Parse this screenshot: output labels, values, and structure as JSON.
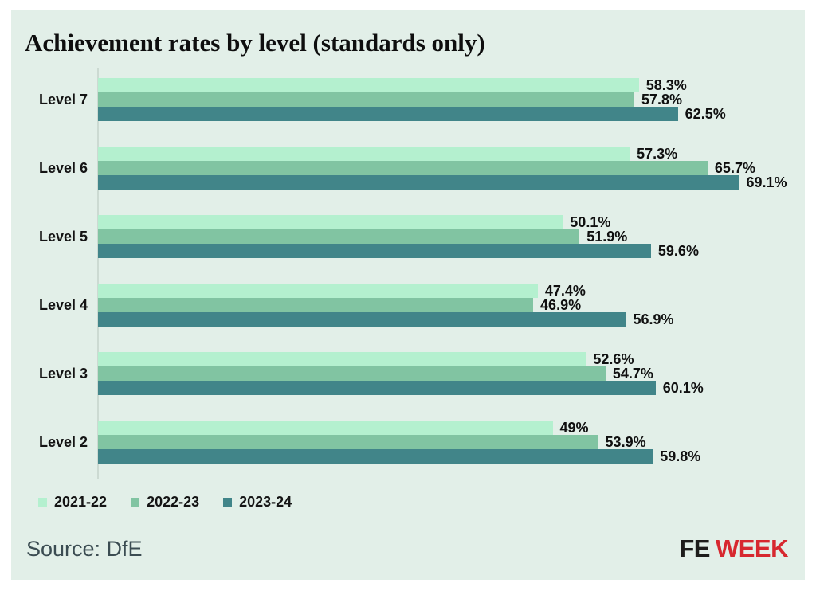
{
  "title": "Achievement rates by level (standards only)",
  "source": "Source: DfE",
  "logo": {
    "fe": "FE",
    "week": "WEEK"
  },
  "colors": {
    "background_card": "#e2efe8",
    "page": "#ffffff",
    "axis": "#ccdad2",
    "text": "#141414",
    "source_text": "#3b4c52",
    "logo_fe": "#1d1d1b",
    "logo_week": "#d7282f"
  },
  "chart_data": {
    "type": "bar",
    "orientation": "horizontal",
    "title": "Achievement rates by level (standards only)",
    "categories": [
      "Level 7",
      "Level 6",
      "Level 5",
      "Level 4",
      "Level 3",
      "Level 2"
    ],
    "series": [
      {
        "name": "2021-22",
        "color": "#b4f0cf",
        "values": [
          58.3,
          57.3,
          50.1,
          47.4,
          52.6,
          49
        ],
        "labels": [
          "58.3%",
          "57.3%",
          "50.1%",
          "47.4%",
          "52.6%",
          "49%"
        ]
      },
      {
        "name": "2022-23",
        "color": "#81c4a2",
        "values": [
          57.8,
          65.7,
          51.9,
          46.9,
          54.7,
          53.9
        ],
        "labels": [
          "57.8%",
          "65.7%",
          "51.9%",
          "46.9%",
          "54.7%",
          "53.9%"
        ]
      },
      {
        "name": "2023-24",
        "color": "#418589",
        "values": [
          62.5,
          69.1,
          59.6,
          56.9,
          60.1,
          59.8
        ],
        "labels": [
          "62.5%",
          "69.1%",
          "59.6%",
          "56.9%",
          "60.1%",
          "59.8%"
        ]
      }
    ],
    "xlim": [
      0,
      70
    ],
    "xlabel": "",
    "ylabel": "",
    "grid": false,
    "legend_position": "bottom-left",
    "value_labels": "outside-end"
  }
}
